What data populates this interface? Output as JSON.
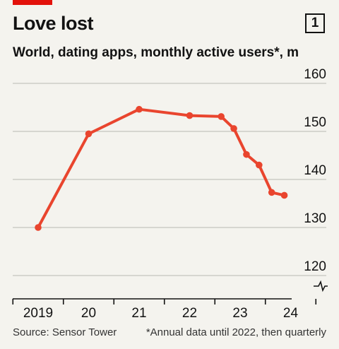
{
  "header": {
    "title": "Love lost",
    "badge": "1",
    "subtitle": "World, dating apps, monthly active users*, m"
  },
  "footer": {
    "source": "Source: Sensor Tower",
    "note": "*Annual data until 2022, then quarterly"
  },
  "colors": {
    "line": "#e9452e",
    "accent": "#e3120b",
    "grid": "#b9b8b2",
    "background": "#f4f3ee"
  },
  "chart_data": {
    "type": "line",
    "title": "Love lost",
    "subtitle": "World, dating apps, monthly active users*, m",
    "xlabel": "",
    "ylabel": "",
    "ylim": [
      115,
      160
    ],
    "y_ticks": [
      120,
      130,
      140,
      150,
      160
    ],
    "y_tick_labels": [
      "120",
      "130",
      "140",
      "150",
      "160"
    ],
    "x_tick_labels": [
      "2019",
      "20",
      "21",
      "22",
      "23",
      "24"
    ],
    "y_axis_break": true,
    "grid": true,
    "series": [
      {
        "name": "",
        "points": [
          {
            "x": 2019.0,
            "y": 130.0
          },
          {
            "x": 2020.0,
            "y": 149.5
          },
          {
            "x": 2021.0,
            "y": 154.6
          },
          {
            "x": 2022.0,
            "y": 153.3
          },
          {
            "x": 2022.625,
            "y": 153.1
          },
          {
            "x": 2022.875,
            "y": 150.6
          },
          {
            "x": 2023.125,
            "y": 145.2
          },
          {
            "x": 2023.375,
            "y": 143.0
          },
          {
            "x": 2023.625,
            "y": 137.3
          },
          {
            "x": 2023.875,
            "y": 136.7
          }
        ]
      }
    ]
  }
}
